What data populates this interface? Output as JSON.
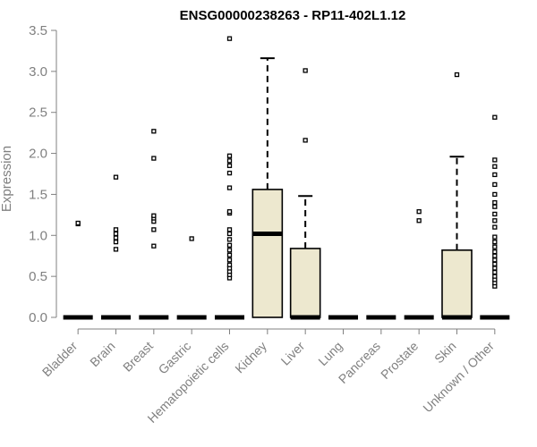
{
  "chart_data": {
    "type": "box",
    "title": "ENSG00000238263 - RP11-402L1.12",
    "ylabel": "Expression",
    "xlabel": "",
    "ylim": [
      0,
      3.5
    ],
    "yticks": [
      "0.0",
      "0.5",
      "1.0",
      "1.5",
      "2.0",
      "2.5",
      "3.0",
      "3.5"
    ],
    "grid": false,
    "box_fill": "#EDE8CF",
    "categories": [
      "Bladder",
      "Brain",
      "Breast",
      "Gastric",
      "Hematopoietic cells",
      "Kidney",
      "Liver",
      "Lung",
      "Pancreas",
      "Prostate",
      "Skin",
      "Unknown / Other"
    ],
    "boxes": [
      {
        "q1": 0,
        "median": 0,
        "q3": 0,
        "whisker_low": 0,
        "whisker_high": 0,
        "outliers": [
          1.14,
          1.15
        ]
      },
      {
        "q1": 0,
        "median": 0,
        "q3": 0,
        "whisker_low": 0,
        "whisker_high": 0,
        "outliers": [
          0.83,
          0.92,
          0.97,
          1.02,
          1.07,
          1.71
        ]
      },
      {
        "q1": 0,
        "median": 0,
        "q3": 0,
        "whisker_low": 0,
        "whisker_high": 0,
        "outliers": [
          0.87,
          1.07,
          1.17,
          1.21,
          1.24,
          1.94,
          2.27
        ]
      },
      {
        "q1": 0,
        "median": 0,
        "q3": 0,
        "whisker_low": 0,
        "whisker_high": 0,
        "outliers": [
          0.96
        ]
      },
      {
        "q1": 0,
        "median": 0,
        "q3": 0,
        "whisker_low": 0,
        "whisker_high": 0,
        "outliers": [
          0.48,
          0.52,
          0.56,
          0.6,
          0.64,
          0.7,
          0.76,
          0.82,
          0.88,
          0.95,
          1.02,
          1.07,
          1.27,
          1.29,
          1.58,
          1.76,
          1.85,
          1.91,
          1.97,
          3.4
        ]
      },
      {
        "q1": 0,
        "median": 1.02,
        "q3": 1.56,
        "whisker_low": 0,
        "whisker_high": 3.16,
        "outliers": []
      },
      {
        "q1": 0,
        "median": 0,
        "q3": 0.84,
        "whisker_low": 0,
        "whisker_high": 1.48,
        "outliers": [
          2.16,
          3.01
        ]
      },
      {
        "q1": 0,
        "median": 0,
        "q3": 0,
        "whisker_low": 0,
        "whisker_high": 0,
        "outliers": []
      },
      {
        "q1": 0,
        "median": 0,
        "q3": 0,
        "whisker_low": 0,
        "whisker_high": 0,
        "outliers": []
      },
      {
        "q1": 0,
        "median": 0,
        "q3": 0,
        "whisker_low": 0,
        "whisker_high": 0,
        "outliers": [
          1.18,
          1.29
        ]
      },
      {
        "q1": 0,
        "median": 0,
        "q3": 0.82,
        "whisker_low": 0,
        "whisker_high": 1.96,
        "outliers": [
          2.96
        ]
      },
      {
        "q1": 0,
        "median": 0,
        "q3": 0,
        "whisker_low": 0,
        "whisker_high": 0,
        "outliers": [
          0.38,
          0.42,
          0.46,
          0.5,
          0.55,
          0.6,
          0.65,
          0.7,
          0.75,
          0.8,
          0.86,
          0.92,
          0.98,
          1.1,
          1.18,
          1.26,
          1.35,
          1.4,
          1.5,
          1.62,
          1.74,
          1.84,
          1.92,
          2.44
        ]
      }
    ]
  }
}
